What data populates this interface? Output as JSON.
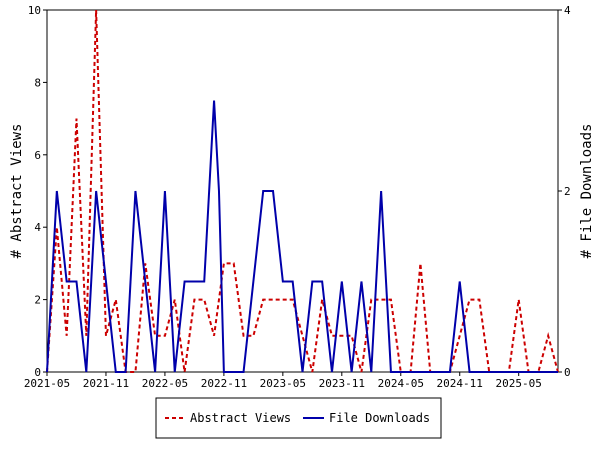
{
  "chart_data": {
    "type": "line",
    "xlabel": "",
    "ylabel_left": "# Abstract Views",
    "ylabel_right": "# File Downloads",
    "ylim_left": [
      0,
      10
    ],
    "ylim_right": [
      0,
      4
    ],
    "yticks_left": [
      "0",
      "2",
      "4",
      "6",
      "8",
      "10"
    ],
    "yticks_right": [
      "0",
      "2",
      "4"
    ],
    "x_range": [
      0,
      52
    ],
    "xticks": [
      {
        "label": "2021-05",
        "x": 0
      },
      {
        "label": "2021-11",
        "x": 6
      },
      {
        "label": "2022-05",
        "x": 12
      },
      {
        "label": "2022-11",
        "x": 18
      },
      {
        "label": "2023-05",
        "x": 24
      },
      {
        "label": "2023-11",
        "x": 30
      },
      {
        "label": "2024-05",
        "x": 36
      },
      {
        "label": "2024-11",
        "x": 42
      },
      {
        "label": "2025-05",
        "x": 48
      }
    ],
    "legend_position": "bottom",
    "series": [
      {
        "name": "Abstract Views",
        "axis": "left",
        "color": "#cc0000",
        "dash": "dashed",
        "x": [
          0,
          1,
          2,
          3,
          4,
          5,
          6,
          7,
          8,
          9,
          10,
          11,
          12,
          13,
          14,
          15,
          16,
          17,
          18,
          19,
          20,
          21,
          22,
          23,
          24,
          25,
          26,
          27,
          28,
          29,
          30,
          31,
          32,
          33,
          34,
          35,
          36,
          37,
          38,
          39,
          40,
          41,
          42,
          43,
          44,
          45,
          46,
          47,
          48,
          49,
          50,
          51,
          52
        ],
        "values": [
          0,
          4,
          1,
          7,
          1,
          10,
          1,
          2,
          0,
          0,
          3,
          1,
          1,
          2,
          0,
          2,
          2,
          1,
          3,
          3,
          1,
          1,
          2,
          2,
          2,
          2,
          1,
          0,
          2,
          1,
          1,
          1,
          0,
          2,
          2,
          2,
          0,
          0,
          3,
          0,
          0,
          0,
          1,
          2,
          2,
          0,
          0,
          0,
          2,
          0,
          0,
          1,
          0
        ]
      },
      {
        "name": "File Downloads",
        "axis": "right",
        "color": "#0000aa",
        "dash": "solid",
        "x": [
          0,
          1,
          2,
          3,
          4,
          5,
          6,
          7,
          8,
          9,
          10,
          11,
          12,
          13,
          14,
          15,
          16,
          17,
          17.5,
          18,
          19,
          20,
          21,
          22,
          22.5,
          23,
          24,
          25,
          26,
          27,
          28,
          29,
          30,
          31,
          32,
          33,
          34,
          35,
          36,
          37,
          38,
          39,
          40,
          41,
          42,
          43,
          44,
          45,
          46,
          47,
          48,
          49,
          50,
          51,
          52
        ],
        "values": [
          0,
          2,
          1,
          1,
          0,
          2,
          1,
          0,
          0,
          2,
          1,
          0,
          2,
          0,
          1,
          1,
          1,
          3,
          2,
          0,
          0,
          0,
          1,
          2,
          2,
          2,
          1,
          1,
          0,
          1,
          1,
          0,
          1,
          0,
          1,
          0,
          2,
          0,
          0,
          0,
          0,
          0,
          0,
          0,
          1,
          0,
          0,
          0,
          0,
          0,
          0,
          0,
          0,
          0,
          0
        ]
      }
    ]
  }
}
